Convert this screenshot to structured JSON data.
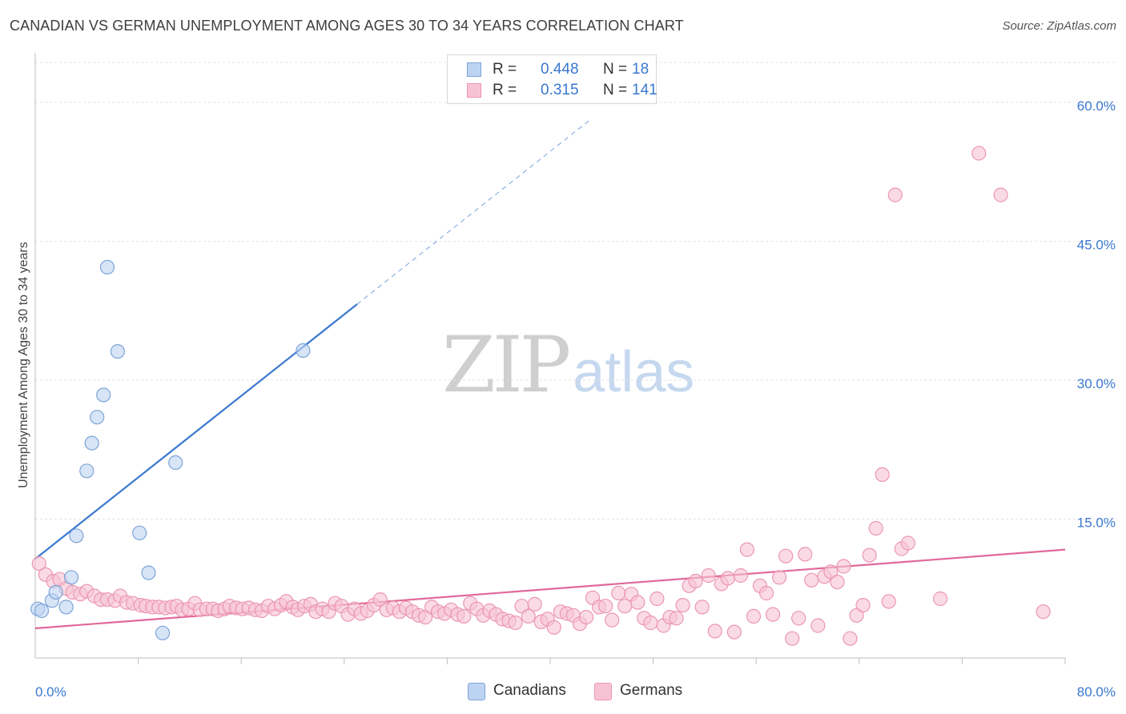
{
  "title": "CANADIAN VS GERMAN UNEMPLOYMENT AMONG AGES 30 TO 34 YEARS CORRELATION CHART",
  "source": "Source: ZipAtlas.com",
  "watermark": {
    "zip": "ZIP",
    "atlas": "atlas"
  },
  "stats": {
    "canadians": {
      "r_label": "R =",
      "r_value": "0.448",
      "n_label": "N =",
      "n_value": "18"
    },
    "germans": {
      "r_label": "R =",
      "r_value": "0.315",
      "n_label": "N =",
      "n_value": "141"
    }
  },
  "legend": {
    "canadians": "Canadians",
    "germans": "Germans"
  },
  "colors": {
    "canadian_fill": "#bcd3f2",
    "canadian_stroke": "#7ea4d8",
    "canadian_line": "#3a78d0",
    "german_fill": "#f7c3d4",
    "german_stroke": "#eb96b3",
    "german_line": "#e0699a",
    "axis_text": "#3a78d0",
    "grid": "#e2e2e2"
  },
  "chart_data": {
    "type": "scatter",
    "title": "CANADIAN VS GERMAN UNEMPLOYMENT AMONG AGES 30 TO 34 YEARS CORRELATION CHART",
    "xlabel": "",
    "ylabel": "Unemployment Among Ages 30 to 34 years",
    "xlim": [
      0,
      80
    ],
    "ylim": [
      0,
      65
    ],
    "x_tick_labels": [
      "0.0%",
      "80.0%"
    ],
    "y_ticks": [
      15,
      30,
      45,
      60
    ],
    "y_tick_labels": [
      "15.0%",
      "30.0%",
      "45.0%",
      "60.0%"
    ],
    "grid": true,
    "legend_position": "bottom-center",
    "series": [
      {
        "name": "Canadians",
        "trendline": {
          "x": [
            0,
            25
          ],
          "y": [
            10.7,
            38.2
          ],
          "dashed_extension_to_x": 43
        },
        "points": [
          [
            0.2,
            5.3
          ],
          [
            0.5,
            5.1
          ],
          [
            1.3,
            6.2
          ],
          [
            1.6,
            7.1
          ],
          [
            2.4,
            5.5
          ],
          [
            2.8,
            8.7
          ],
          [
            3.2,
            13.2
          ],
          [
            4.0,
            20.2
          ],
          [
            4.4,
            23.2
          ],
          [
            4.8,
            26.0
          ],
          [
            5.3,
            28.4
          ],
          [
            5.6,
            42.2
          ],
          [
            6.4,
            33.1
          ],
          [
            8.1,
            13.5
          ],
          [
            8.8,
            9.2
          ],
          [
            9.9,
            2.7
          ],
          [
            10.9,
            21.1
          ],
          [
            20.8,
            33.2
          ]
        ]
      },
      {
        "name": "Germans",
        "trendline": {
          "x": [
            0,
            80
          ],
          "y": [
            3.2,
            11.7
          ]
        },
        "points": [
          [
            0.3,
            10.2
          ],
          [
            0.8,
            9.0
          ],
          [
            1.4,
            8.3
          ],
          [
            1.9,
            8.5
          ],
          [
            2.4,
            7.5
          ],
          [
            2.9,
            7.1
          ],
          [
            3.5,
            6.9
          ],
          [
            4.0,
            7.2
          ],
          [
            4.6,
            6.7
          ],
          [
            5.1,
            6.3
          ],
          [
            5.6,
            6.3
          ],
          [
            6.2,
            6.2
          ],
          [
            6.6,
            6.7
          ],
          [
            7.1,
            6.0
          ],
          [
            7.6,
            5.9
          ],
          [
            8.2,
            5.7
          ],
          [
            8.6,
            5.6
          ],
          [
            9.1,
            5.5
          ],
          [
            9.6,
            5.5
          ],
          [
            10.1,
            5.4
          ],
          [
            10.6,
            5.5
          ],
          [
            11.0,
            5.6
          ],
          [
            11.4,
            5.2
          ],
          [
            11.9,
            5.3
          ],
          [
            12.4,
            5.9
          ],
          [
            12.8,
            5.2
          ],
          [
            13.3,
            5.3
          ],
          [
            13.8,
            5.3
          ],
          [
            14.2,
            5.1
          ],
          [
            14.7,
            5.3
          ],
          [
            15.1,
            5.6
          ],
          [
            15.6,
            5.4
          ],
          [
            16.1,
            5.3
          ],
          [
            16.6,
            5.4
          ],
          [
            17.1,
            5.2
          ],
          [
            17.6,
            5.1
          ],
          [
            18.1,
            5.6
          ],
          [
            18.6,
            5.3
          ],
          [
            19.1,
            5.7
          ],
          [
            19.5,
            6.1
          ],
          [
            20.0,
            5.5
          ],
          [
            20.4,
            5.2
          ],
          [
            20.9,
            5.6
          ],
          [
            21.4,
            5.8
          ],
          [
            21.8,
            5.0
          ],
          [
            22.3,
            5.3
          ],
          [
            22.8,
            5.0
          ],
          [
            23.3,
            5.9
          ],
          [
            23.8,
            5.6
          ],
          [
            24.3,
            4.7
          ],
          [
            24.8,
            5.3
          ],
          [
            25.3,
            4.8
          ],
          [
            25.8,
            5.1
          ],
          [
            26.3,
            5.7
          ],
          [
            26.8,
            6.3
          ],
          [
            27.3,
            5.2
          ],
          [
            27.8,
            5.4
          ],
          [
            28.3,
            5.0
          ],
          [
            28.8,
            5.4
          ],
          [
            29.3,
            5.0
          ],
          [
            29.8,
            4.6
          ],
          [
            30.3,
            4.4
          ],
          [
            30.8,
            5.5
          ],
          [
            31.3,
            5.0
          ],
          [
            31.8,
            4.8
          ],
          [
            32.3,
            5.2
          ],
          [
            32.8,
            4.7
          ],
          [
            33.3,
            4.5
          ],
          [
            33.8,
            5.9
          ],
          [
            34.3,
            5.3
          ],
          [
            34.8,
            4.6
          ],
          [
            35.3,
            5.1
          ],
          [
            35.8,
            4.7
          ],
          [
            36.3,
            4.2
          ],
          [
            36.8,
            4.0
          ],
          [
            37.3,
            3.8
          ],
          [
            37.8,
            5.6
          ],
          [
            38.3,
            4.5
          ],
          [
            38.8,
            5.8
          ],
          [
            39.3,
            3.9
          ],
          [
            39.8,
            4.2
          ],
          [
            40.3,
            3.3
          ],
          [
            40.8,
            5.0
          ],
          [
            41.3,
            4.8
          ],
          [
            41.8,
            4.6
          ],
          [
            42.3,
            3.7
          ],
          [
            42.8,
            4.4
          ],
          [
            43.3,
            6.5
          ],
          [
            43.8,
            5.5
          ],
          [
            44.3,
            5.6
          ],
          [
            44.8,
            4.1
          ],
          [
            45.3,
            7.0
          ],
          [
            45.8,
            5.6
          ],
          [
            46.3,
            6.9
          ],
          [
            46.8,
            6.0
          ],
          [
            47.3,
            4.3
          ],
          [
            47.8,
            3.8
          ],
          [
            48.3,
            6.4
          ],
          [
            48.8,
            3.5
          ],
          [
            49.3,
            4.4
          ],
          [
            49.8,
            4.3
          ],
          [
            50.3,
            5.7
          ],
          [
            50.8,
            7.8
          ],
          [
            51.3,
            8.3
          ],
          [
            51.8,
            5.5
          ],
          [
            52.3,
            8.9
          ],
          [
            52.8,
            2.9
          ],
          [
            53.3,
            8.0
          ],
          [
            53.8,
            8.6
          ],
          [
            54.3,
            2.8
          ],
          [
            54.8,
            8.9
          ],
          [
            55.3,
            11.7
          ],
          [
            55.8,
            4.5
          ],
          [
            56.3,
            7.8
          ],
          [
            56.8,
            7.0
          ],
          [
            57.3,
            4.7
          ],
          [
            57.8,
            8.7
          ],
          [
            58.3,
            11.0
          ],
          [
            58.8,
            2.1
          ],
          [
            59.3,
            4.3
          ],
          [
            59.8,
            11.2
          ],
          [
            60.3,
            8.4
          ],
          [
            60.8,
            3.5
          ],
          [
            61.3,
            8.8
          ],
          [
            61.8,
            9.3
          ],
          [
            62.3,
            8.2
          ],
          [
            62.8,
            9.9
          ],
          [
            63.3,
            2.1
          ],
          [
            63.8,
            4.6
          ],
          [
            64.3,
            5.7
          ],
          [
            64.8,
            11.1
          ],
          [
            65.3,
            14.0
          ],
          [
            65.8,
            19.8
          ],
          [
            66.3,
            6.1
          ],
          [
            66.8,
            50.0
          ],
          [
            67.3,
            11.8
          ],
          [
            67.8,
            12.4
          ],
          [
            70.3,
            6.4
          ],
          [
            73.3,
            54.5
          ],
          [
            75.0,
            50.0
          ],
          [
            78.3,
            5.0
          ]
        ]
      }
    ]
  }
}
